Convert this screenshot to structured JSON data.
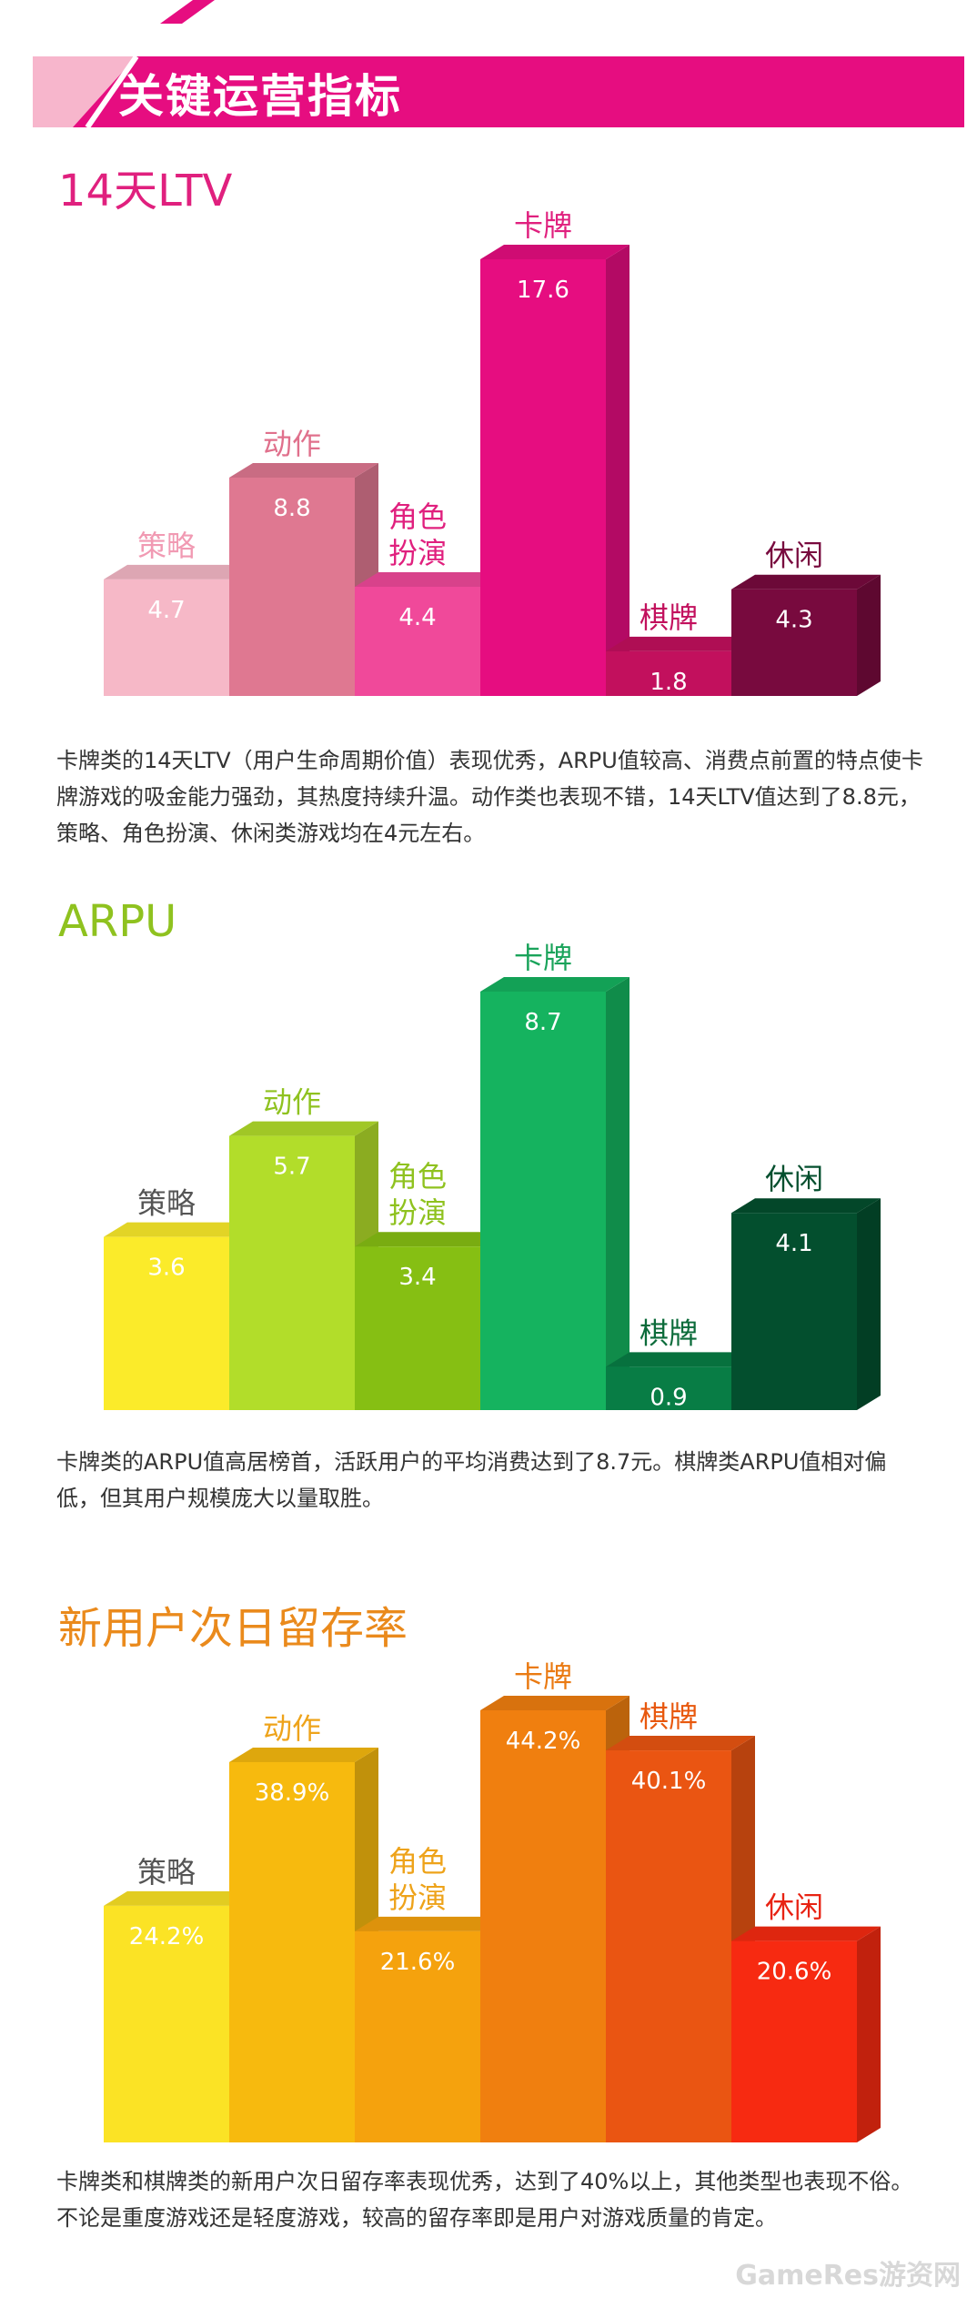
{
  "header": {
    "title": "关键运营指标"
  },
  "sections": [
    {
      "title": "14天LTV",
      "title_color": "#e0207e",
      "description": "卡牌类的14天LTV（用户生命周期价值）表现优秀，ARPU值较高、消费点前置的特点使卡牌游戏的吸金能力强劲，其热度持续升温。动作类也表现不错，14天LTV值达到了8.8元，策略、角色扮演、休闲类游戏均在4元左右。"
    },
    {
      "title": "ARPU",
      "title_color": "#8fc21f",
      "description": "卡牌类的ARPU值高居榜首，活跃用户的平均消费达到了8.7元。棋牌类ARPU值相对偏低，但其用户规模庞大以量取胜。"
    },
    {
      "title": "新用户次日留存率",
      "title_color": "#ea8a1c",
      "description": "卡牌类和棋牌类的新用户次日留存率表现优秀，达到了40%以上，其他类型也表现不俗。不论是重度游戏还是轻度游戏，较高的留存率即是用户对游戏质量的肯定。"
    }
  ],
  "chart_data": [
    {
      "type": "bar",
      "categories": [
        "策略",
        "动作",
        "角色扮演",
        "卡牌",
        "棋牌",
        "休闲"
      ],
      "values": [
        4.7,
        8.8,
        4.4,
        17.6,
        1.8,
        4.3
      ],
      "value_labels": [
        "4.7",
        "8.8",
        "4.4",
        "17.6",
        "1.8",
        "4.3"
      ],
      "category_labels": [
        [
          "策略"
        ],
        [
          "动作"
        ],
        [
          "角色",
          "扮演"
        ],
        [
          "卡牌"
        ],
        [
          "棋牌"
        ],
        [
          "休闲"
        ]
      ],
      "colors": [
        "#f6b8c7",
        "#df7891",
        "#f0499a",
        "#e60d80",
        "#c2105d",
        "#780a3e"
      ],
      "label_colors": [
        "#f19ab3",
        "#e0708c",
        "#e0207e",
        "#e0207e",
        "#c2105d",
        "#780a3e"
      ],
      "ylim": [
        0,
        17.6
      ]
    },
    {
      "type": "bar",
      "categories": [
        "策略",
        "动作",
        "角色扮演",
        "卡牌",
        "棋牌",
        "休闲"
      ],
      "values": [
        3.6,
        5.7,
        3.4,
        8.7,
        0.9,
        4.1
      ],
      "value_labels": [
        "3.6",
        "5.7",
        "3.4",
        "8.7",
        "0.9",
        "4.1"
      ],
      "category_labels": [
        [
          "策略"
        ],
        [
          "动作"
        ],
        [
          "角色",
          "扮演"
        ],
        [
          "卡牌"
        ],
        [
          "棋牌"
        ],
        [
          "休闲"
        ]
      ],
      "colors": [
        "#fbeb2a",
        "#b2dd2a",
        "#86bf13",
        "#15b35f",
        "#087d45",
        "#034f2e"
      ],
      "label_colors": [
        "#555555",
        "#8fc21f",
        "#8fc21f",
        "#19a35a",
        "#0b6b3a",
        "#034f2e"
      ],
      "ylim": [
        0,
        8.7
      ]
    },
    {
      "type": "bar",
      "categories": [
        "策略",
        "动作",
        "角色扮演",
        "卡牌",
        "棋牌",
        "休闲"
      ],
      "values": [
        24.2,
        38.9,
        21.6,
        44.2,
        40.1,
        20.6
      ],
      "value_labels": [
        "24.2%",
        "38.9%",
        "21.6%",
        "44.2%",
        "40.1%",
        "20.6%"
      ],
      "category_labels": [
        [
          "策略"
        ],
        [
          "动作"
        ],
        [
          "角色",
          "扮演"
        ],
        [
          "卡牌"
        ],
        [
          "棋牌"
        ],
        [
          "休闲"
        ]
      ],
      "colors": [
        "#fbe325",
        "#f7ba0e",
        "#f5a20d",
        "#f07f0f",
        "#ea5512",
        "#f72a11"
      ],
      "label_colors": [
        "#555555",
        "#eea31a",
        "#eea31a",
        "#ea7a12",
        "#e8580d",
        "#e82313"
      ],
      "ylim": [
        0,
        44.2
      ]
    }
  ],
  "watermark": "GameRes游资网"
}
